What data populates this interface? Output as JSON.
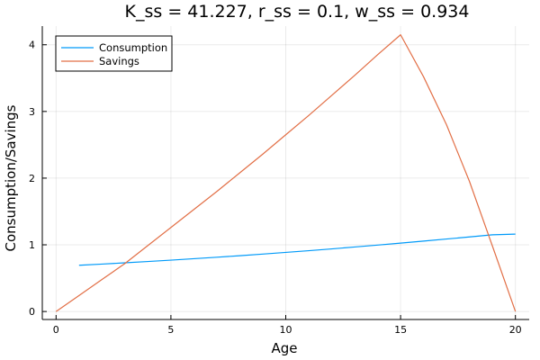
{
  "chart_data": {
    "type": "line",
    "title": "K_ss = 41.227, r_ss = 0.1, w_ss = 0.934",
    "xlabel": "Age",
    "ylabel": "Consumption/Savings",
    "xlim": [
      -0.6,
      20.6
    ],
    "ylim": [
      -0.12,
      4.28
    ],
    "xticks": [
      0,
      5,
      10,
      15,
      20
    ],
    "yticks": [
      0,
      1,
      2,
      3,
      4
    ],
    "grid": true,
    "legend_position": "top-left",
    "series": [
      {
        "name": "Consumption",
        "color": "#009af9",
        "x": [
          1,
          2,
          3,
          4,
          5,
          6,
          7,
          8,
          9,
          10,
          11,
          12,
          13,
          14,
          15,
          16,
          17,
          18,
          19,
          20
        ],
        "y": [
          0.693,
          0.711,
          0.73,
          0.75,
          0.77,
          0.792,
          0.814,
          0.837,
          0.861,
          0.886,
          0.912,
          0.939,
          0.967,
          0.996,
          1.026,
          1.056,
          1.087,
          1.118,
          1.15,
          1.16
        ]
      },
      {
        "name": "Savings",
        "color": "#e26f46",
        "x": [
          0,
          1,
          2,
          3,
          4,
          5,
          6,
          7,
          8,
          9,
          10,
          11,
          12,
          13,
          14,
          15,
          16,
          17,
          18,
          19,
          20
        ],
        "y": [
          0.0,
          0.24,
          0.48,
          0.72,
          0.99,
          1.26,
          1.53,
          1.8,
          2.08,
          2.36,
          2.65,
          2.94,
          3.24,
          3.54,
          3.85,
          4.15,
          3.52,
          2.8,
          1.95,
          0.98,
          0.0
        ]
      }
    ]
  }
}
